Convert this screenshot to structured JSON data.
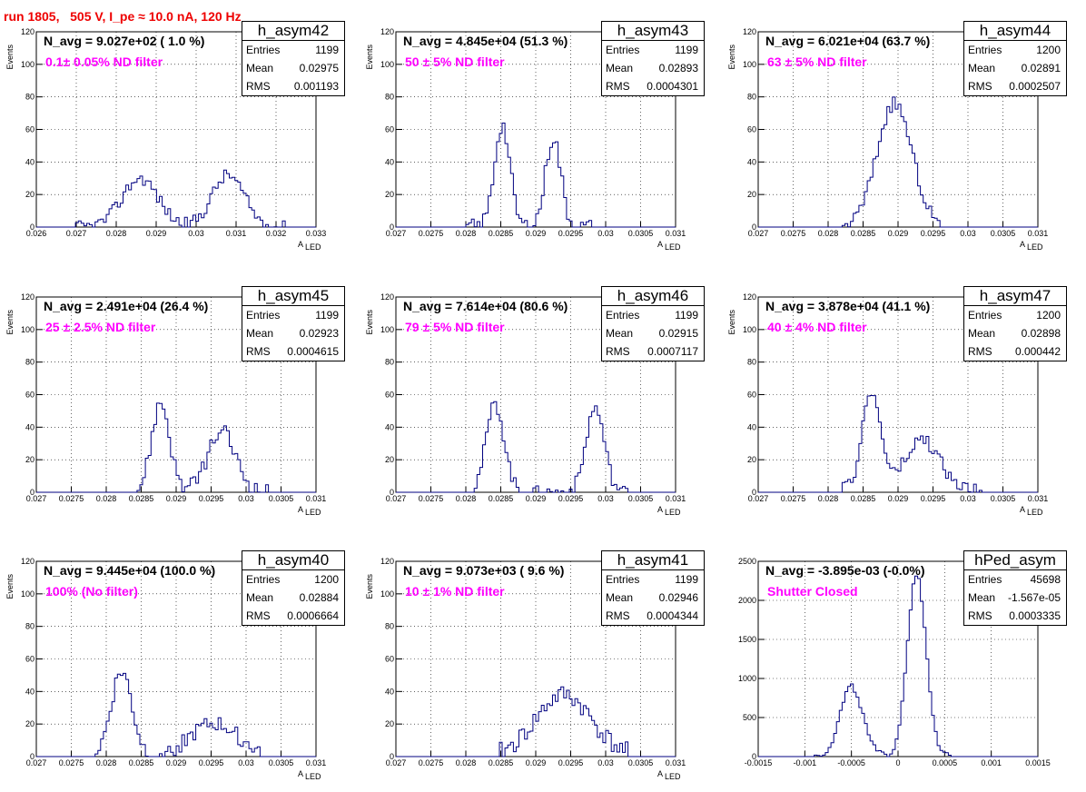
{
  "run_title": "run 1805,   505 V, I_pe ≈ 10.0 nA, 120 Hz",
  "colors": {
    "histogram": "#000080",
    "title": "#ee0000",
    "filter_text": "#ff00ff",
    "grid": "#000000"
  },
  "chart_data": [
    {
      "type": "bar",
      "name": "h_asym42",
      "navg": "N_avg = 9.027e+02 ( 1.0 %)",
      "filter": "0.1± 0.05% ND filter",
      "stats": {
        "entries": "1199",
        "mean": "0.02975",
        "rms": "0.001193"
      },
      "xlim": [
        0.026,
        0.033
      ],
      "ylim": [
        0,
        120
      ],
      "xticks": [
        "0.026",
        "0.027",
        "0.028",
        "0.029",
        "0.03",
        "0.031",
        "0.032",
        "0.033"
      ],
      "yticks": [
        "0",
        "20",
        "40",
        "60",
        "80",
        "100",
        "120"
      ],
      "xlabel": "A",
      "xlabel_sub": "LED",
      "ylabel": "Events",
      "peaks": [
        [
          0.0286,
          0.00045,
          30
        ],
        [
          0.0308,
          0.0004,
          32
        ]
      ],
      "noise": 4,
      "edges": [
        0.027,
        0.0324
      ],
      "seed": 42
    },
    {
      "type": "bar",
      "name": "h_asym43",
      "navg": "N_avg = 4.845e+04 (51.3 %)",
      "filter": "50 ± 5% ND filter",
      "stats": {
        "entries": "1199",
        "mean": "0.02893",
        "rms": "0.0004301"
      },
      "xlim": [
        0.027,
        0.031
      ],
      "ylim": [
        0,
        120
      ],
      "xticks": [
        "0.027",
        "0.0275",
        "0.028",
        "0.0285",
        "0.029",
        "0.0295",
        "0.03",
        "0.0305",
        "0.031"
      ],
      "yticks": [
        "0",
        "20",
        "40",
        "60",
        "80",
        "100",
        "120"
      ],
      "xlabel": "A",
      "xlabel_sub": "LED",
      "ylabel": "Events",
      "peaks": [
        [
          0.02852,
          0.00011,
          63
        ],
        [
          0.02925,
          0.00011,
          55
        ]
      ],
      "noise": 5,
      "edges": [
        0.028,
        0.0298
      ],
      "seed": 43
    },
    {
      "type": "bar",
      "name": "h_asym44",
      "navg": "N_avg = 6.021e+04 (63.7 %)",
      "filter": "63 ± 5% ND filter",
      "stats": {
        "entries": "1200",
        "mean": "0.02891",
        "rms": "0.0002507"
      },
      "xlim": [
        0.027,
        0.031
      ],
      "ylim": [
        0,
        120
      ],
      "xticks": [
        "0.027",
        "0.0275",
        "0.028",
        "0.0285",
        "0.029",
        "0.0295",
        "0.03",
        "0.0305",
        "0.031"
      ],
      "yticks": [
        "0",
        "20",
        "40",
        "60",
        "80",
        "100",
        "120"
      ],
      "xlabel": "A",
      "xlabel_sub": "LED",
      "ylabel": "Events",
      "peaks": [
        [
          0.02895,
          0.00025,
          76
        ]
      ],
      "noise": 4,
      "edges": [
        0.0282,
        0.0296
      ],
      "seed": 44
    },
    {
      "type": "bar",
      "name": "h_asym45",
      "navg": "N_avg = 2.491e+04 (26.4 %)",
      "filter": "25 ± 2.5% ND filter",
      "stats": {
        "entries": "1199",
        "mean": "0.02923",
        "rms": "0.0004615"
      },
      "xlim": [
        0.027,
        0.031
      ],
      "ylim": [
        0,
        120
      ],
      "xticks": [
        "0.027",
        "0.0275",
        "0.028",
        "0.0285",
        "0.029",
        "0.0295",
        "0.03",
        "0.0305",
        "0.031"
      ],
      "yticks": [
        "0",
        "20",
        "40",
        "60",
        "80",
        "100",
        "120"
      ],
      "xlabel": "A",
      "xlabel_sub": "LED",
      "ylabel": "Events",
      "peaks": [
        [
          0.02878,
          0.00013,
          55
        ],
        [
          0.02965,
          0.0002,
          37
        ]
      ],
      "noise": 5,
      "edges": [
        0.0284,
        0.0303
      ],
      "seed": 45
    },
    {
      "type": "bar",
      "name": "h_asym46",
      "navg": "N_avg = 7.614e+04 (80.6 %)",
      "filter": "79 ± 5% ND filter",
      "stats": {
        "entries": "1199",
        "mean": "0.02915",
        "rms": "0.0007117"
      },
      "xlim": [
        0.027,
        0.031
      ],
      "ylim": [
        0,
        120
      ],
      "xticks": [
        "0.027",
        "0.0275",
        "0.028",
        "0.0285",
        "0.029",
        "0.0295",
        "0.03",
        "0.0305",
        "0.031"
      ],
      "yticks": [
        "0",
        "20",
        "40",
        "60",
        "80",
        "100",
        "120"
      ],
      "xlabel": "A",
      "xlabel_sub": "LED",
      "ylabel": "Events",
      "peaks": [
        [
          0.02842,
          0.00013,
          54
        ],
        [
          0.02985,
          0.00013,
          52
        ]
      ],
      "noise": 4,
      "edges": [
        0.0281,
        0.0303
      ],
      "seed": 46
    },
    {
      "type": "bar",
      "name": "h_asym47",
      "navg": "N_avg = 3.878e+04 (41.1 %)",
      "filter": "40 ± 4% ND filter",
      "stats": {
        "entries": "1200",
        "mean": "0.02898",
        "rms": "0.000442"
      },
      "xlim": [
        0.027,
        0.031
      ],
      "ylim": [
        0,
        120
      ],
      "xticks": [
        "0.027",
        "0.0275",
        "0.028",
        "0.0285",
        "0.029",
        "0.0295",
        "0.03",
        "0.0305",
        "0.031"
      ],
      "yticks": [
        "0",
        "20",
        "40",
        "60",
        "80",
        "100",
        "120"
      ],
      "xlabel": "A",
      "xlabel_sub": "LED",
      "ylabel": "Events",
      "peaks": [
        [
          0.02862,
          0.00014,
          60
        ],
        [
          0.02935,
          0.00025,
          32
        ]
      ],
      "noise": 5,
      "edges": [
        0.0282,
        0.0302
      ],
      "seed": 47
    },
    {
      "type": "bar",
      "name": "h_asym40",
      "navg": "N_avg = 9.445e+04 (100.0 %)",
      "filter": "100% (No filter)",
      "stats": {
        "entries": "1200",
        "mean": "0.02884",
        "rms": "0.0006664"
      },
      "xlim": [
        0.027,
        0.031
      ],
      "ylim": [
        0,
        120
      ],
      "xticks": [
        "0.027",
        "0.0275",
        "0.028",
        "0.0285",
        "0.029",
        "0.0295",
        "0.03",
        "0.0305",
        "0.031"
      ],
      "yticks": [
        "0",
        "20",
        "40",
        "60",
        "80",
        "100",
        "120"
      ],
      "xlabel": "A",
      "xlabel_sub": "LED",
      "ylabel": "Events",
      "peaks": [
        [
          0.02822,
          0.00015,
          52
        ],
        [
          0.02955,
          0.00035,
          20
        ]
      ],
      "noise": 5,
      "edges": [
        0.0278,
        0.0302
      ],
      "seed": 40
    },
    {
      "type": "bar",
      "name": "h_asym41",
      "navg": "N_avg = 9.073e+03 ( 9.6 %)",
      "filter": "10 ± 1% ND filter",
      "stats": {
        "entries": "1199",
        "mean": "0.02946",
        "rms": "0.0004344"
      },
      "xlim": [
        0.027,
        0.031
      ],
      "ylim": [
        0,
        120
      ],
      "xticks": [
        "0.027",
        "0.0275",
        "0.028",
        "0.0285",
        "0.029",
        "0.0295",
        "0.03",
        "0.0305",
        "0.031"
      ],
      "yticks": [
        "0",
        "20",
        "40",
        "60",
        "80",
        "100",
        "120"
      ],
      "xlabel": "A",
      "xlabel_sub": "LED",
      "ylabel": "Events",
      "peaks": [
        [
          0.0294,
          0.0004,
          38
        ]
      ],
      "noise": 6,
      "edges": [
        0.0285,
        0.0303
      ],
      "seed": 41
    },
    {
      "type": "bar",
      "name": "hPed_asym",
      "navg": "N_avg = -3.895e-03 (-0.0%)",
      "filter": "Shutter Closed",
      "stats": {
        "entries": "45698",
        "mean": "-1.567e-05",
        "rms": "0.0003335"
      },
      "xlim": [
        -0.0015,
        0.0015
      ],
      "ylim": [
        0,
        2500
      ],
      "xticks": [
        "-0.0015",
        "-0.001",
        "-0.0005",
        "0",
        "0.0005",
        "0.001",
        "0.0015"
      ],
      "yticks": [
        "0",
        "500",
        "1000",
        "1500",
        "2000",
        "2500"
      ],
      "xlabel": "",
      "xlabel_sub": "",
      "ylabel": "",
      "peaks": [
        [
          -0.0005,
          0.00012,
          900
        ],
        [
          0.0002,
          0.0001,
          2350
        ]
      ],
      "noise": 40,
      "edges": [
        -0.0009,
        0.0006
      ],
      "seed": 49
    }
  ]
}
